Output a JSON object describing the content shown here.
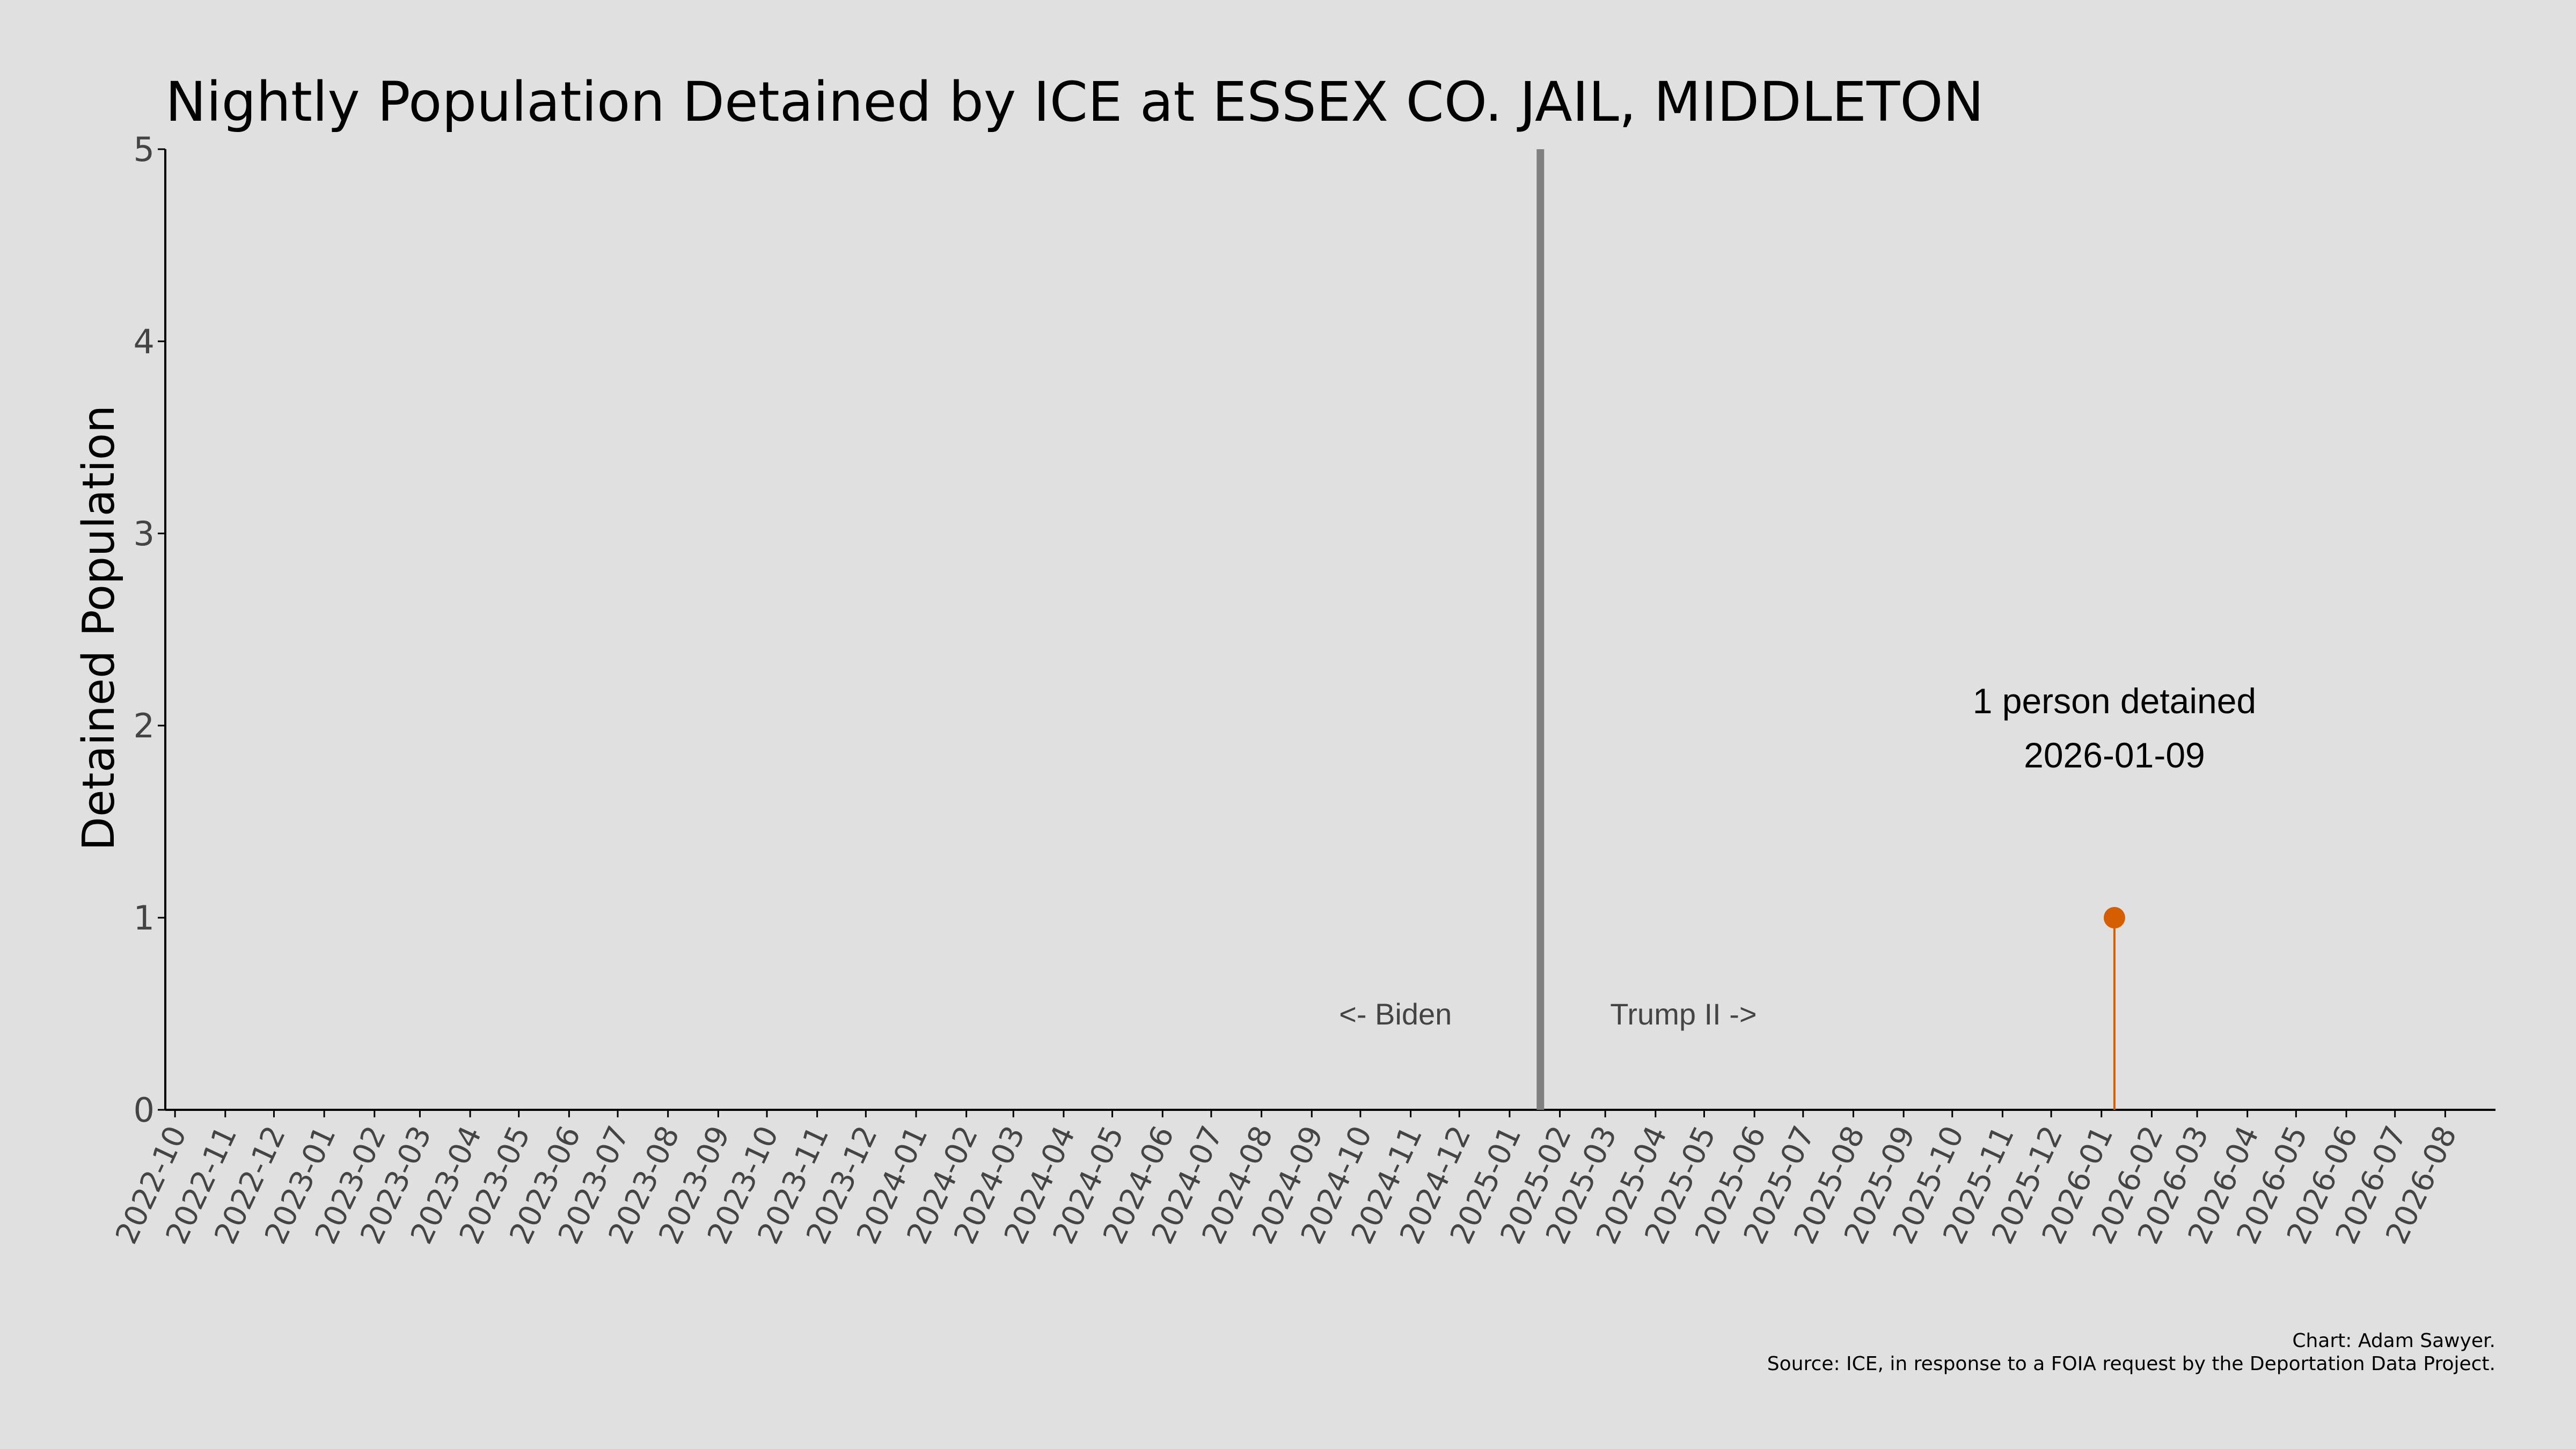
{
  "chart_data": {
    "type": "scatter",
    "title": "Nightly Population Detained by ICE at ESSEX CO. JAIL, MIDDLETON",
    "xlabel": "",
    "ylabel": "Detained Population",
    "ylim": [
      0,
      5
    ],
    "yticks": [
      0,
      1,
      2,
      3,
      4,
      5
    ],
    "xlim": [
      "2022-09-25",
      "2026-09-01"
    ],
    "xticks": [
      "2022-10",
      "2022-11",
      "2022-12",
      "2023-01",
      "2023-02",
      "2023-03",
      "2023-04",
      "2023-05",
      "2023-06",
      "2023-07",
      "2023-08",
      "2023-09",
      "2023-10",
      "2023-11",
      "2023-12",
      "2024-01",
      "2024-02",
      "2024-03",
      "2024-04",
      "2024-05",
      "2024-06",
      "2024-07",
      "2024-08",
      "2024-09",
      "2024-10",
      "2024-11",
      "2024-12",
      "2025-01",
      "2025-02",
      "2025-03",
      "2025-04",
      "2025-05",
      "2025-06",
      "2025-07",
      "2025-08",
      "2025-09",
      "2025-10",
      "2025-11",
      "2025-12",
      "2026-01",
      "2026-02",
      "2026-03",
      "2026-04",
      "2026-05",
      "2026-06",
      "2026-07",
      "2026-08"
    ],
    "grid": false,
    "series": [
      {
        "points": [
          {
            "x": "2026-01-09",
            "y": 1
          }
        ],
        "color": "#d55e00"
      }
    ],
    "vertical_line": {
      "x": "2025-01-20",
      "color": "#808080"
    },
    "annotations": {
      "biden": "<- Biden",
      "trump": "Trump II ->",
      "peak_line1": "1 person detained",
      "peak_line2": "2026-01-09"
    },
    "caption": {
      "line1": "Chart: Adam Sawyer.",
      "line2": "Source: ICE, in response to a FOIA request by the Deportation Data Project."
    }
  }
}
